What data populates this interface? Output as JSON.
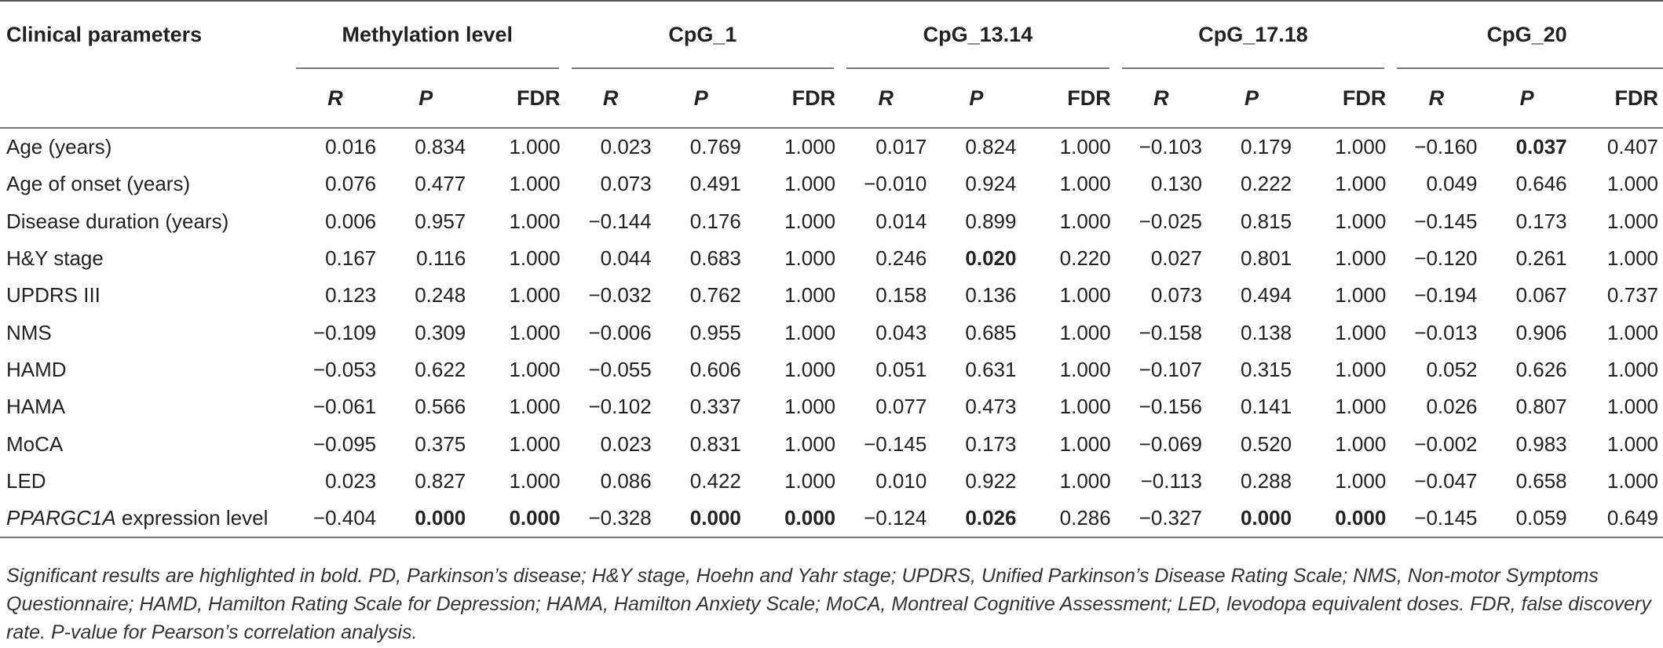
{
  "table": {
    "first_header": "Clinical parameters",
    "groups": [
      "Methylation level",
      "CpG_1",
      "CpG_13.14",
      "CpG_17.18",
      "CpG_20"
    ],
    "subheaders": [
      "R",
      "P",
      "FDR"
    ],
    "rows": [
      {
        "label": "Age (years)",
        "values": [
          "0.016",
          "0.834",
          "1.000",
          "0.023",
          "0.769",
          "1.000",
          "0.017",
          "0.824",
          "1.000",
          "−0.103",
          "0.179",
          "1.000",
          "−0.160",
          "0.037",
          "0.407"
        ],
        "bold": [
          13
        ]
      },
      {
        "label": "Age of onset (years)",
        "values": [
          "0.076",
          "0.477",
          "1.000",
          "0.073",
          "0.491",
          "1.000",
          "−0.010",
          "0.924",
          "1.000",
          "0.130",
          "0.222",
          "1.000",
          "0.049",
          "0.646",
          "1.000"
        ],
        "bold": []
      },
      {
        "label": "Disease duration (years)",
        "values": [
          "0.006",
          "0.957",
          "1.000",
          "−0.144",
          "0.176",
          "1.000",
          "0.014",
          "0.899",
          "1.000",
          "−0.025",
          "0.815",
          "1.000",
          "−0.145",
          "0.173",
          "1.000"
        ],
        "bold": []
      },
      {
        "label": "H&Y stage",
        "values": [
          "0.167",
          "0.116",
          "1.000",
          "0.044",
          "0.683",
          "1.000",
          "0.246",
          "0.020",
          "0.220",
          "0.027",
          "0.801",
          "1.000",
          "−0.120",
          "0.261",
          "1.000"
        ],
        "bold": [
          7
        ]
      },
      {
        "label": "UPDRS III",
        "values": [
          "0.123",
          "0.248",
          "1.000",
          "−0.032",
          "0.762",
          "1.000",
          "0.158",
          "0.136",
          "1.000",
          "0.073",
          "0.494",
          "1.000",
          "−0.194",
          "0.067",
          "0.737"
        ],
        "bold": []
      },
      {
        "label": "NMS",
        "values": [
          "−0.109",
          "0.309",
          "1.000",
          "−0.006",
          "0.955",
          "1.000",
          "0.043",
          "0.685",
          "1.000",
          "−0.158",
          "0.138",
          "1.000",
          "−0.013",
          "0.906",
          "1.000"
        ],
        "bold": []
      },
      {
        "label": "HAMD",
        "values": [
          "−0.053",
          "0.622",
          "1.000",
          "−0.055",
          "0.606",
          "1.000",
          "0.051",
          "0.631",
          "1.000",
          "−0.107",
          "0.315",
          "1.000",
          "0.052",
          "0.626",
          "1.000"
        ],
        "bold": []
      },
      {
        "label": "HAMA",
        "values": [
          "−0.061",
          "0.566",
          "1.000",
          "−0.102",
          "0.337",
          "1.000",
          "0.077",
          "0.473",
          "1.000",
          "−0.156",
          "0.141",
          "1.000",
          "0.026",
          "0.807",
          "1.000"
        ],
        "bold": []
      },
      {
        "label": "MoCA",
        "values": [
          "−0.095",
          "0.375",
          "1.000",
          "0.023",
          "0.831",
          "1.000",
          "−0.145",
          "0.173",
          "1.000",
          "−0.069",
          "0.520",
          "1.000",
          "−0.002",
          "0.983",
          "1.000"
        ],
        "bold": []
      },
      {
        "label": "LED",
        "values": [
          "0.023",
          "0.827",
          "1.000",
          "0.086",
          "0.422",
          "1.000",
          "0.010",
          "0.922",
          "1.000",
          "−0.113",
          "0.288",
          "1.000",
          "−0.047",
          "0.658",
          "1.000"
        ],
        "bold": []
      },
      {
        "label_italic": "PPARGC1A",
        "label_rest": " expression level",
        "values": [
          "−0.404",
          "0.000",
          "0.000",
          "−0.328",
          "0.000",
          "0.000",
          "−0.124",
          "0.026",
          "0.286",
          "−0.327",
          "0.000",
          "0.000",
          "−0.145",
          "0.059",
          "0.649"
        ],
        "bold": [
          1,
          2,
          4,
          5,
          7,
          10,
          11
        ]
      }
    ]
  },
  "footnote": "Significant results are highlighted in bold. PD, Parkinson’s disease; H&Y stage, Hoehn and Yahr stage; UPDRS, Unified Parkinson’s Disease Rating Scale; NMS, Non-motor Symptoms Questionnaire; HAMD, Hamilton Rating Scale for Depression; HAMA, Hamilton Anxiety Scale; MoCA, Montreal Cognitive Assessment; LED, levodopa equivalent doses. FDR, false discovery rate. P-value for Pearson’s correlation analysis."
}
